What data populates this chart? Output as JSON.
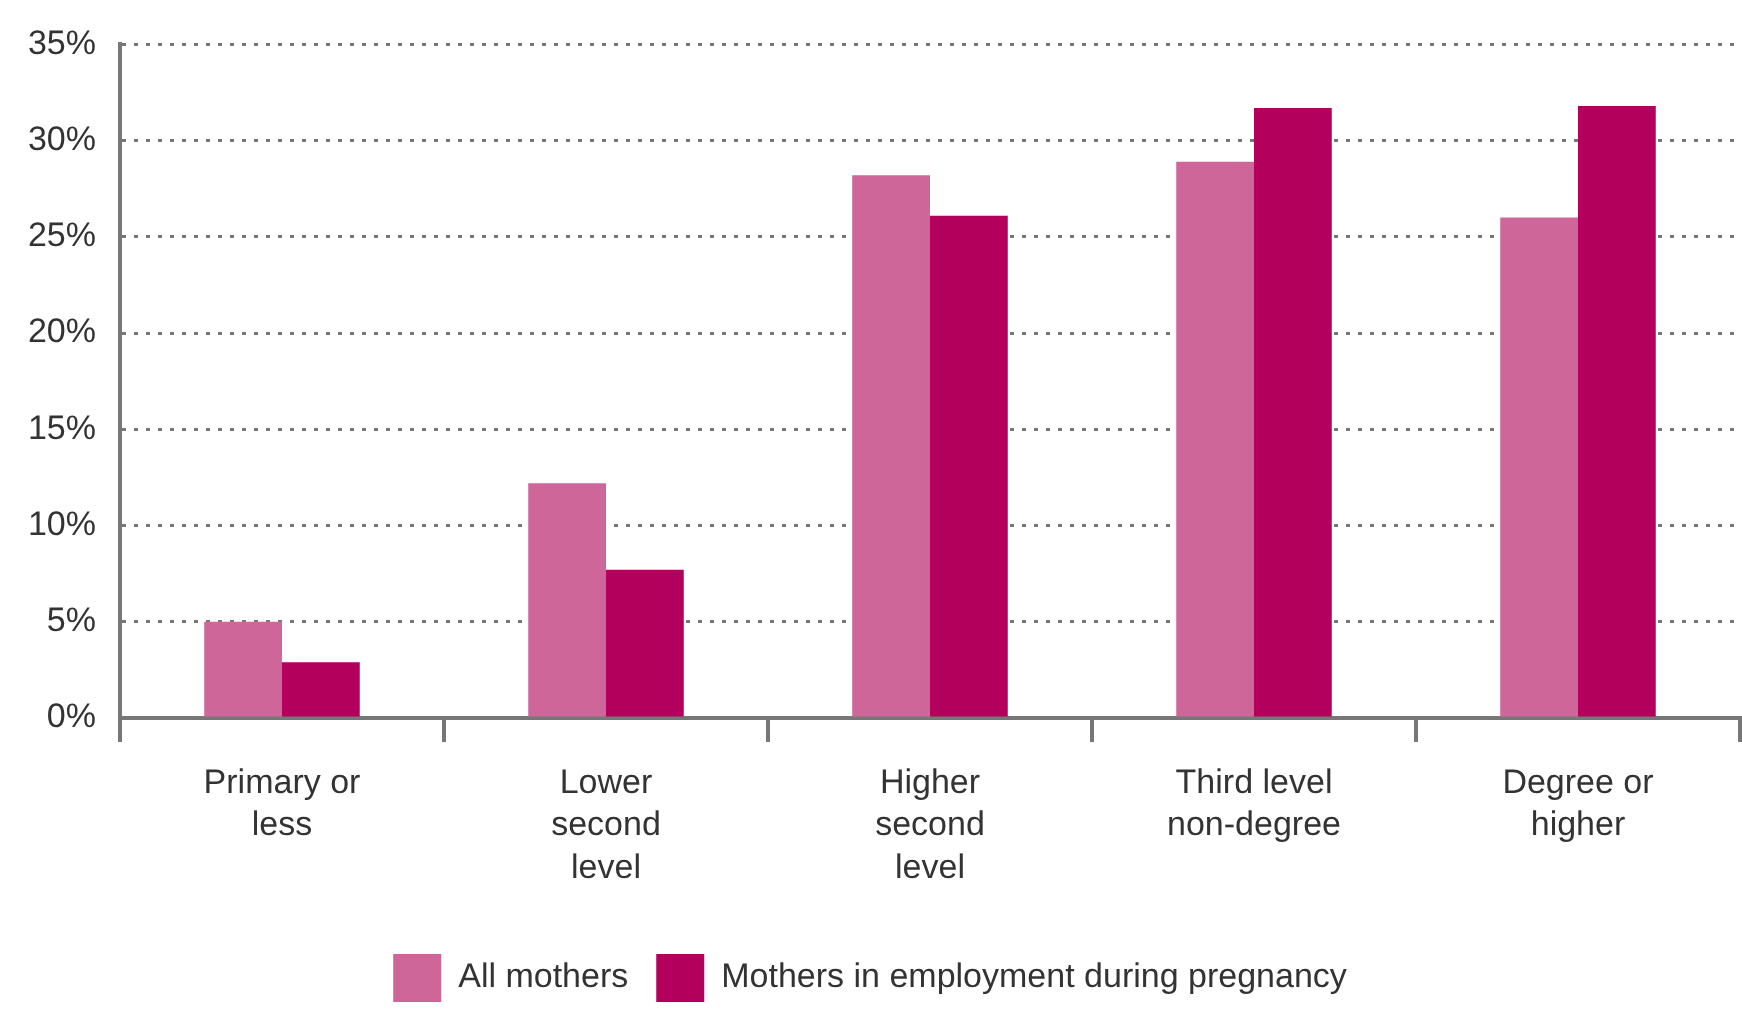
{
  "chart_data": {
    "type": "bar",
    "categories": [
      "Primary or less",
      "Lower second level",
      "Higher second level",
      "Third level non-degree",
      "Degree or higher"
    ],
    "series": [
      {
        "name": "All mothers",
        "color": "#cf6699",
        "values": [
          5.0,
          12.2,
          28.2,
          28.9,
          26.0
        ]
      },
      {
        "name": "Mothers in employment during pregnancy",
        "color": "#b3005c",
        "values": [
          2.9,
          7.7,
          26.1,
          31.7,
          31.8
        ]
      }
    ],
    "ylim": [
      0,
      35
    ],
    "yticks": [
      {
        "value": 0,
        "label": "0%"
      },
      {
        "value": 5,
        "label": "5%"
      },
      {
        "value": 10,
        "label": "10%"
      },
      {
        "value": 15,
        "label": "15%"
      },
      {
        "value": 20,
        "label": "20%"
      },
      {
        "value": 25,
        "label": "25%"
      },
      {
        "value": 30,
        "label": "30%"
      },
      {
        "value": 35,
        "label": "35%"
      }
    ],
    "grid": "y",
    "legend": "bottom"
  }
}
